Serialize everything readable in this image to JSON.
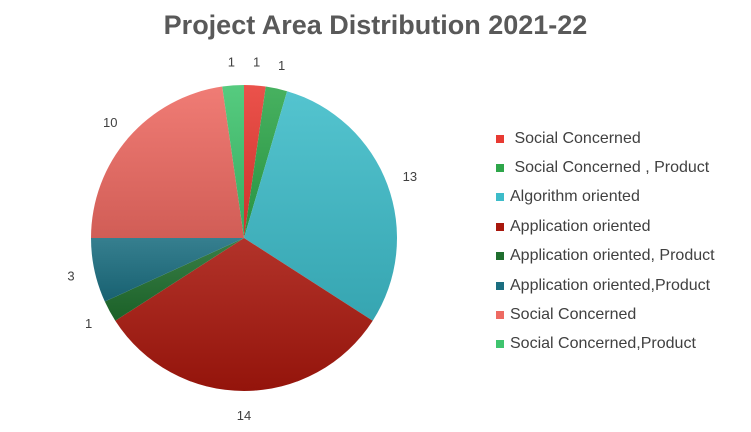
{
  "chart_data": {
    "type": "pie",
    "title": "Project Area Distribution 2021-22",
    "categories": [
      " Social Concerned",
      " Social Concerned , Product",
      "Algorithm oriented",
      "Application oriented",
      "Application oriented, Product",
      "Application oriented,Product",
      "Social Concerned",
      "Social Concerned,Product"
    ],
    "values": [
      1,
      1,
      13,
      14,
      1,
      3,
      10,
      1
    ],
    "colors": [
      "#e83a32",
      "#2ea64a",
      "#3dbcc9",
      "#a8170d",
      "#1f6e2e",
      "#1b6e80",
      "#ee6a62",
      "#3fc46e"
    ],
    "legend_position": "right",
    "data_labels": true
  }
}
